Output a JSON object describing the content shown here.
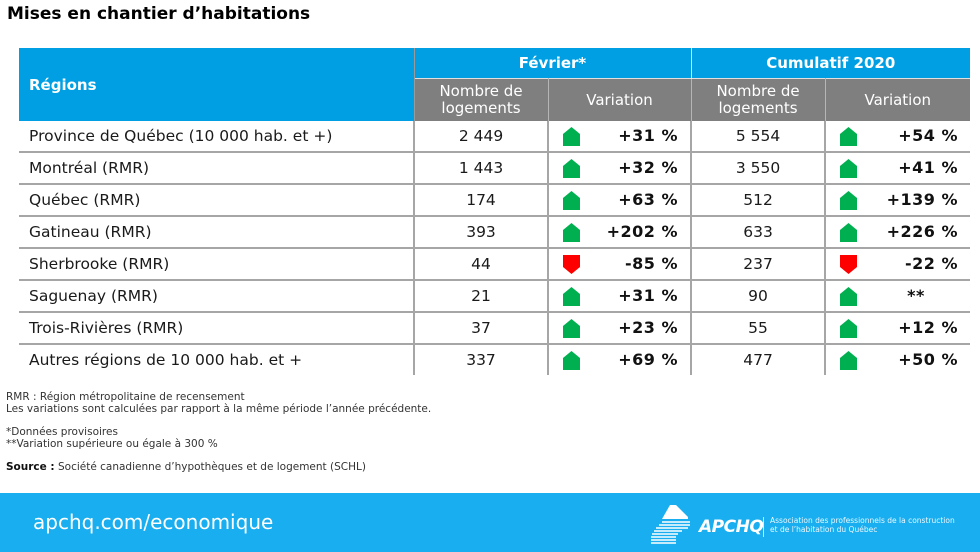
{
  "title": "Mises en chantier d’habitations",
  "table": {
    "header": {
      "regions": "Régions",
      "group1": "Février*",
      "group2": "Cumulatif 2020",
      "count_label": "Nombre de logements",
      "count_label_line1": "Nombre de",
      "count_label_line2": "logements",
      "variation_label": "Variation"
    },
    "rows": [
      {
        "region": "Province de Québec (10 000 hab. et +)",
        "feb_count": "2 449",
        "feb_dir": "up",
        "feb_var": "+31 %",
        "cum_count": "5 554",
        "cum_dir": "up",
        "cum_var": "+54 %"
      },
      {
        "region": "Montréal (RMR)",
        "feb_count": "1 443",
        "feb_dir": "up",
        "feb_var": "+32 %",
        "cum_count": "3 550",
        "cum_dir": "up",
        "cum_var": "+41 %"
      },
      {
        "region": "Québec (RMR)",
        "feb_count": "174",
        "feb_dir": "up",
        "feb_var": "+63 %",
        "cum_count": "512",
        "cum_dir": "up",
        "cum_var": "+139 %"
      },
      {
        "region": "Gatineau (RMR)",
        "feb_count": "393",
        "feb_dir": "up",
        "feb_var": "+202 %",
        "cum_count": "633",
        "cum_dir": "up",
        "cum_var": "+226 %"
      },
      {
        "region": "Sherbrooke (RMR)",
        "feb_count": "44",
        "feb_dir": "down",
        "feb_var": "-85 %",
        "cum_count": "237",
        "cum_dir": "down",
        "cum_var": "-22 %"
      },
      {
        "region": "Saguenay (RMR)",
        "feb_count": "21",
        "feb_dir": "up",
        "feb_var": "+31 %",
        "cum_count": "90",
        "cum_dir": "up",
        "cum_var": "**"
      },
      {
        "region": "Trois-Rivières (RMR)",
        "feb_count": "37",
        "feb_dir": "up",
        "feb_var": "+23 %",
        "cum_count": "55",
        "cum_dir": "up",
        "cum_var": "+12 %"
      },
      {
        "region": "Autres régions de 10 000 hab. et +",
        "feb_count": "337",
        "feb_dir": "up",
        "feb_var": "+69 %",
        "cum_count": "477",
        "cum_dir": "up",
        "cum_var": "+50 %"
      }
    ]
  },
  "notes": {
    "rmr": "RMR : Région métropolitaine de recensement",
    "variations": "Les variations sont calculées par rapport à la même période l’année précédente.",
    "provisional": "*Données provisoires",
    "over300": "**Variation supérieure ou égale à 300 %",
    "source_label": "Source :",
    "source_text": " Société canadienne d’hypothèques et de logement (SCHL)"
  },
  "footer": {
    "url": "apchq.com/economique",
    "logo_brand": "APCHQ",
    "logo_tagline_1": "Association des professionnels de la construction",
    "logo_tagline_2": "et de l’habitation du Québec"
  },
  "colors": {
    "header_blue": "#009fe3",
    "subheader_grey": "#7f7f7f",
    "up_green": "#00b050",
    "down_red": "#ff0000",
    "footer_blue": "#19aeef"
  }
}
